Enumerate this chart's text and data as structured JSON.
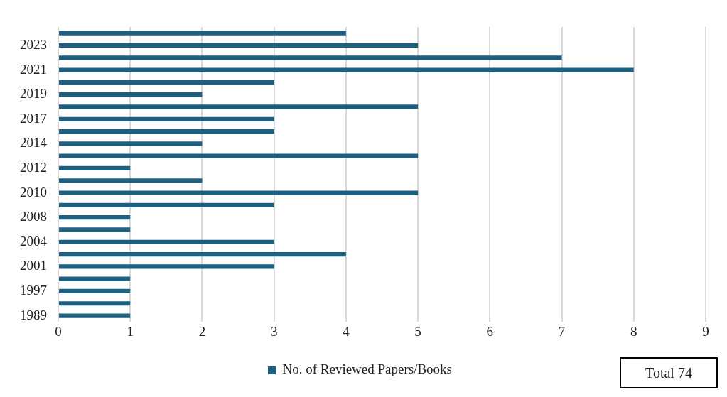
{
  "chart_data": {
    "type": "bar",
    "orientation": "horizontal",
    "categories": [
      null,
      "2023",
      null,
      "2021",
      null,
      "2019",
      null,
      "2017",
      null,
      "2014",
      null,
      "2012",
      null,
      "2010",
      null,
      "2008",
      null,
      "2004",
      null,
      "2001",
      null,
      "1997",
      null,
      "1989"
    ],
    "series": [
      {
        "name": "No. of Reviewed Papers/Books",
        "color": "#1d5f80",
        "values": [
          4,
          5,
          7,
          8,
          3,
          2,
          5,
          3,
          3,
          2,
          5,
          1,
          2,
          5,
          3,
          1,
          1,
          3,
          4,
          3,
          1,
          1,
          1,
          1
        ]
      }
    ],
    "xlim": [
      0,
      9
    ],
    "xticks": [
      0,
      1,
      2,
      3,
      4,
      5,
      6,
      7,
      8,
      9
    ],
    "grid": "x",
    "legend": "bottom",
    "annotations": [
      "Total 74"
    ]
  }
}
